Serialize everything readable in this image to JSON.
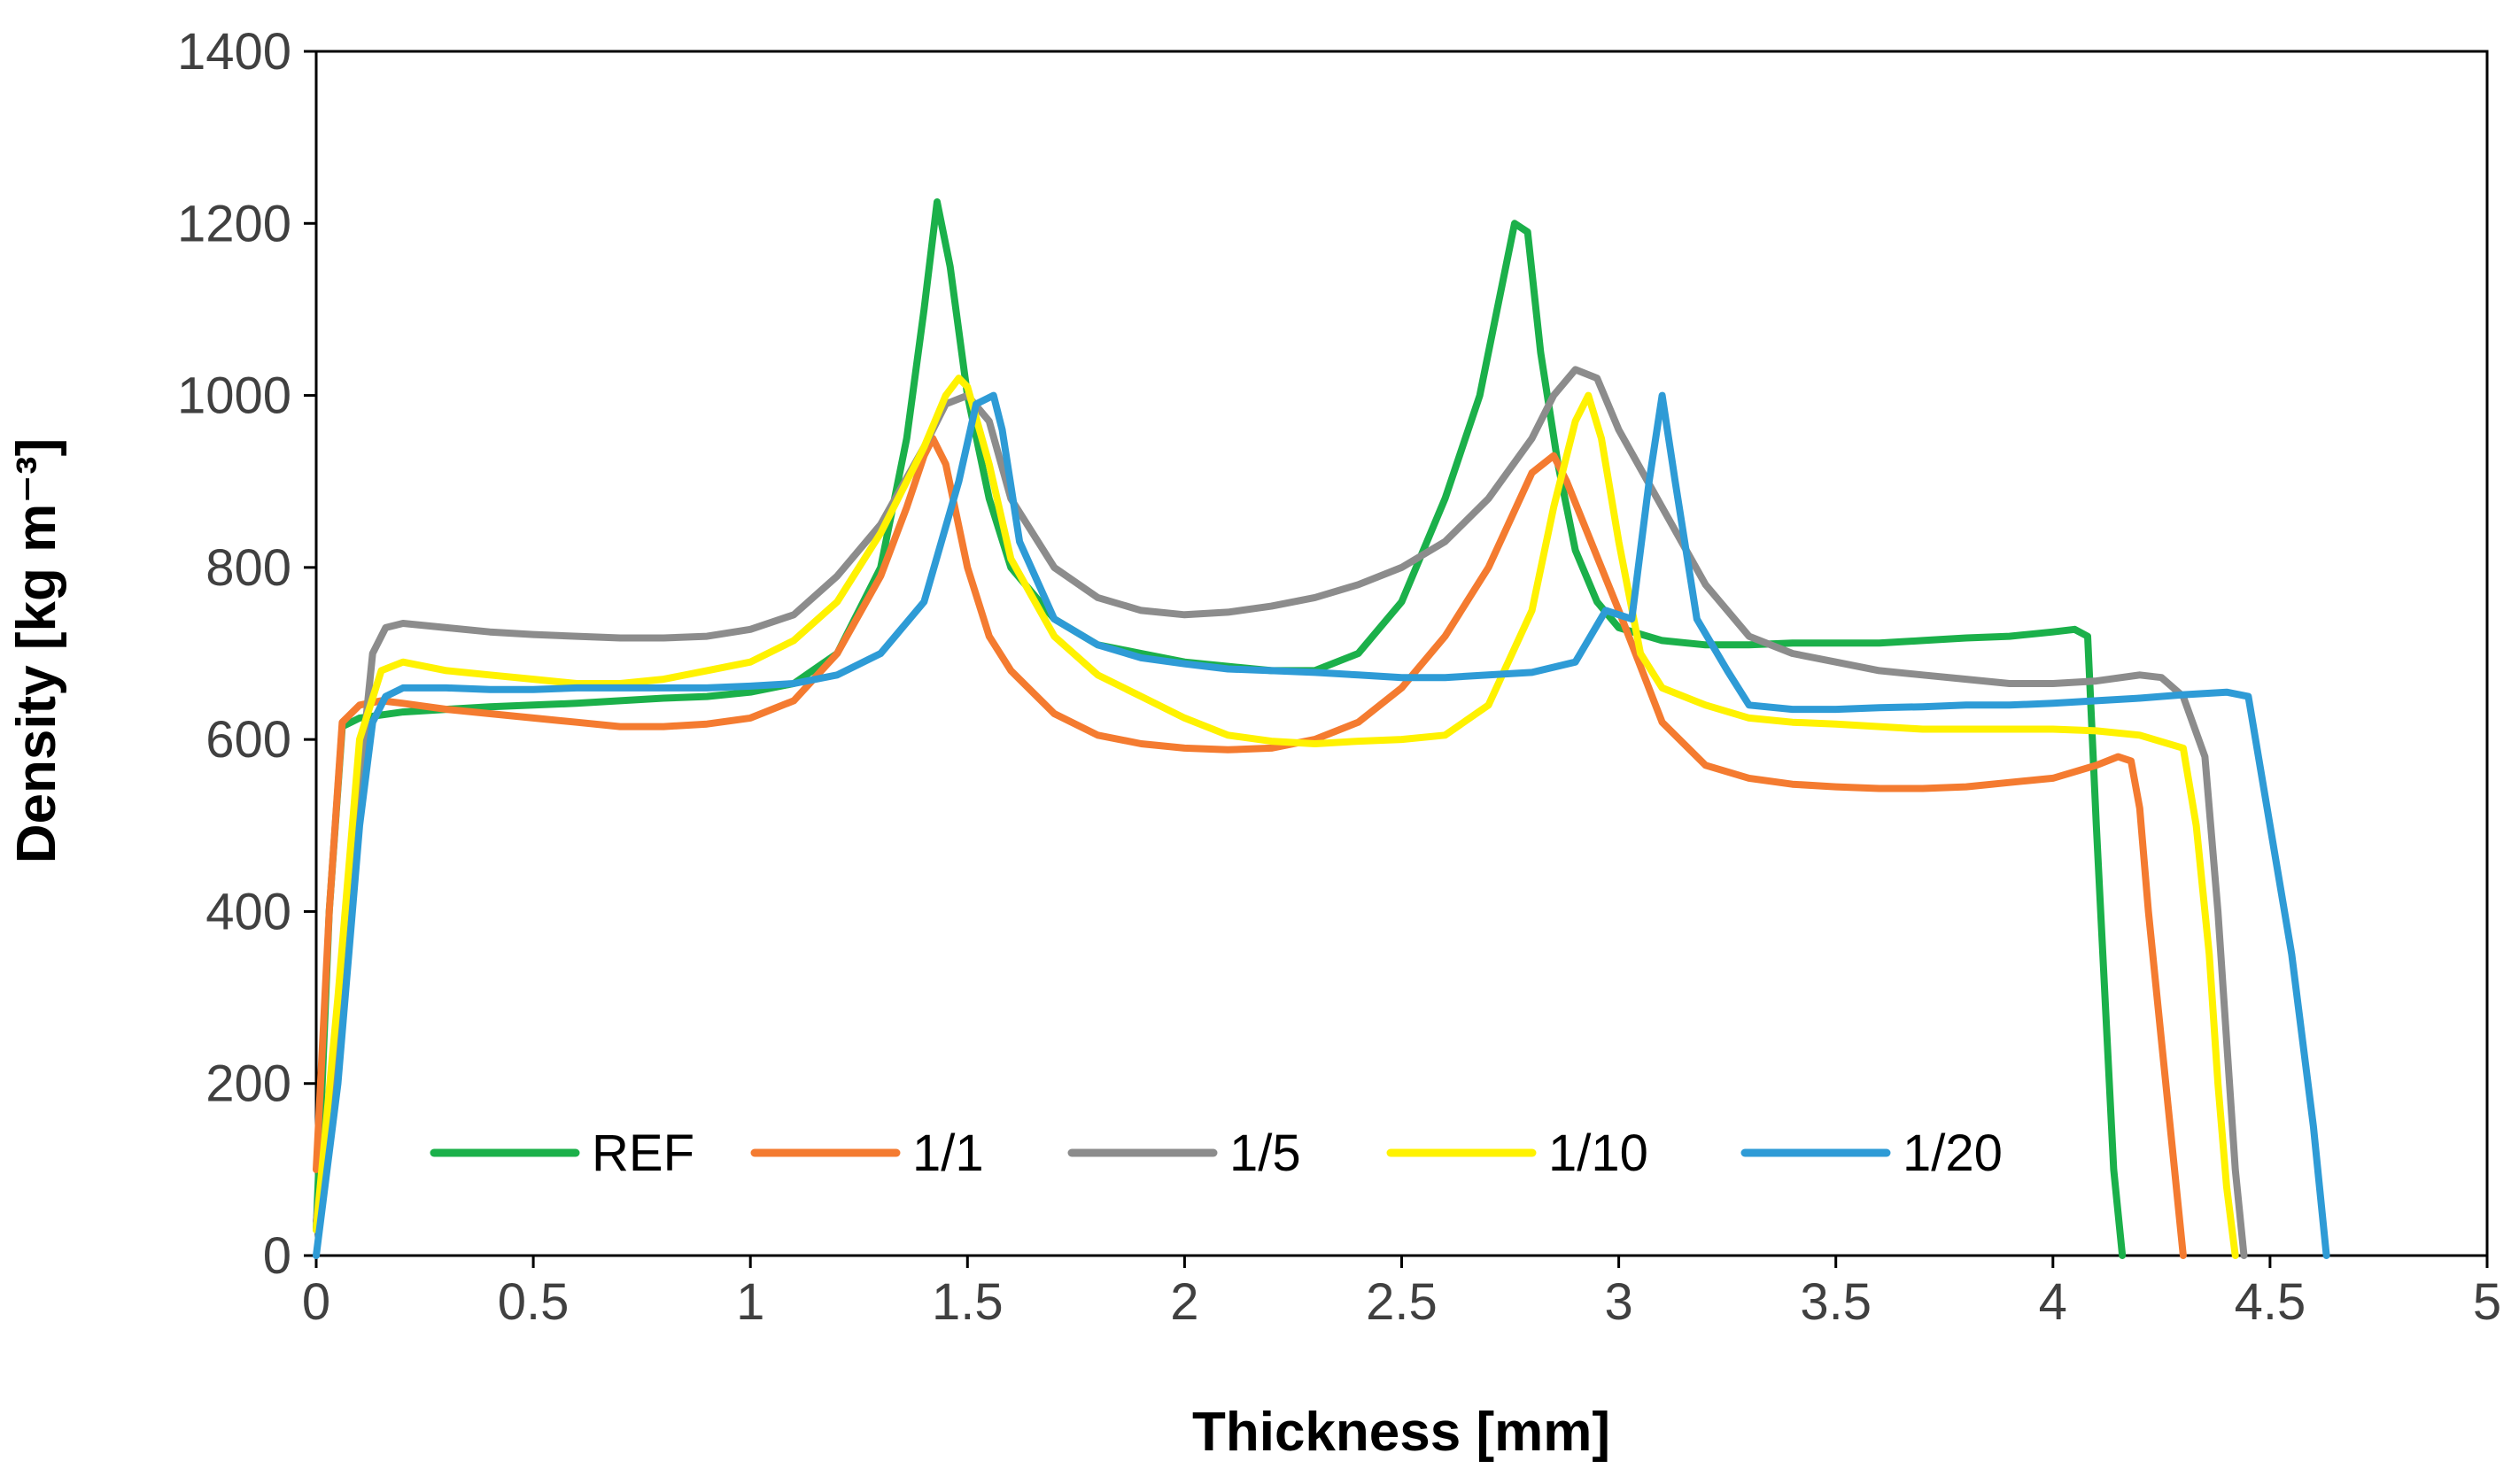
{
  "chart_data": {
    "type": "line",
    "title": "",
    "xlabel": "Thickness [mm]",
    "ylabel": "Density [kg m⁻³]",
    "xlim": [
      0,
      5
    ],
    "ylim": [
      0,
      1400
    ],
    "xticks": [
      0,
      0.5,
      1,
      1.5,
      2,
      2.5,
      3,
      3.5,
      4,
      4.5,
      5
    ],
    "xtick_labels": [
      "0",
      "0.5",
      "1",
      "1.5",
      "2",
      "2.5",
      "3",
      "3.5",
      "4",
      "4.5",
      "5"
    ],
    "yticks": [
      0,
      200,
      400,
      600,
      800,
      1000,
      1200,
      1400
    ],
    "ytick_labels": [
      "0",
      "200",
      "400",
      "600",
      "800",
      "1000",
      "1200",
      "1400"
    ],
    "grid": false,
    "legend_position": "bottom-inside",
    "series": [
      {
        "name": "REF",
        "color": "#1BB04A",
        "x": [
          0,
          0.03,
          0.06,
          0.1,
          0.2,
          0.3,
          0.4,
          0.5,
          0.6,
          0.7,
          0.8,
          0.9,
          1.0,
          1.1,
          1.2,
          1.3,
          1.36,
          1.4,
          1.43,
          1.46,
          1.5,
          1.55,
          1.6,
          1.7,
          1.8,
          1.9,
          2.0,
          2.1,
          2.2,
          2.3,
          2.4,
          2.5,
          2.6,
          2.68,
          2.72,
          2.76,
          2.79,
          2.82,
          2.86,
          2.9,
          2.95,
          3.0,
          3.1,
          3.2,
          3.3,
          3.4,
          3.5,
          3.6,
          3.7,
          3.8,
          3.9,
          4.0,
          4.05,
          4.08,
          4.1,
          4.12,
          4.14,
          4.16
        ],
        "y": [
          30,
          400,
          615,
          625,
          632,
          635,
          638,
          640,
          642,
          645,
          648,
          650,
          655,
          665,
          700,
          800,
          950,
          1100,
          1225,
          1150,
          1000,
          880,
          800,
          740,
          710,
          700,
          690,
          685,
          680,
          680,
          700,
          760,
          880,
          1000,
          1100,
          1200,
          1190,
          1050,
          920,
          820,
          760,
          730,
          715,
          710,
          710,
          712,
          712,
          712,
          715,
          718,
          720,
          725,
          728,
          720,
          500,
          300,
          100,
          0
        ]
      },
      {
        "name": "1/1",
        "color": "#F47B30",
        "x": [
          0,
          0.03,
          0.06,
          0.1,
          0.15,
          0.2,
          0.3,
          0.4,
          0.5,
          0.6,
          0.7,
          0.8,
          0.9,
          1.0,
          1.1,
          1.2,
          1.3,
          1.36,
          1.4,
          1.42,
          1.45,
          1.5,
          1.55,
          1.6,
          1.7,
          1.8,
          1.9,
          2.0,
          2.1,
          2.2,
          2.3,
          2.4,
          2.5,
          2.6,
          2.7,
          2.8,
          2.85,
          2.88,
          2.92,
          3.0,
          3.1,
          3.2,
          3.3,
          3.4,
          3.5,
          3.6,
          3.7,
          3.8,
          3.9,
          4.0,
          4.1,
          4.15,
          4.18,
          4.2,
          4.22,
          4.25,
          4.28,
          4.3
        ],
        "y": [
          100,
          400,
          620,
          640,
          645,
          642,
          635,
          630,
          625,
          620,
          615,
          615,
          618,
          625,
          645,
          700,
          790,
          870,
          930,
          950,
          920,
          800,
          720,
          680,
          630,
          605,
          595,
          590,
          588,
          590,
          600,
          620,
          660,
          720,
          800,
          910,
          930,
          900,
          850,
          750,
          620,
          570,
          555,
          548,
          545,
          543,
          543,
          545,
          550,
          555,
          570,
          580,
          575,
          520,
          400,
          250,
          100,
          0
        ]
      },
      {
        "name": "1/5",
        "color": "#8C8C8C",
        "x": [
          0,
          0.05,
          0.1,
          0.13,
          0.16,
          0.2,
          0.3,
          0.4,
          0.5,
          0.6,
          0.7,
          0.8,
          0.9,
          1.0,
          1.1,
          1.2,
          1.3,
          1.4,
          1.45,
          1.5,
          1.55,
          1.6,
          1.7,
          1.8,
          1.9,
          2.0,
          2.1,
          2.2,
          2.3,
          2.4,
          2.5,
          2.6,
          2.7,
          2.8,
          2.85,
          2.9,
          2.95,
          3.0,
          3.1,
          3.2,
          3.3,
          3.4,
          3.5,
          3.6,
          3.7,
          3.8,
          3.9,
          4.0,
          4.1,
          4.2,
          4.25,
          4.3,
          4.35,
          4.38,
          4.4,
          4.42,
          4.44
        ],
        "y": [
          40,
          250,
          550,
          700,
          730,
          735,
          730,
          725,
          722,
          720,
          718,
          718,
          720,
          728,
          745,
          790,
          850,
          940,
          990,
          1000,
          970,
          880,
          800,
          765,
          750,
          745,
          748,
          755,
          765,
          780,
          800,
          830,
          880,
          950,
          1000,
          1030,
          1020,
          960,
          870,
          780,
          720,
          700,
          690,
          680,
          675,
          670,
          665,
          665,
          668,
          675,
          672,
          650,
          580,
          400,
          250,
          100,
          0
        ]
      },
      {
        "name": "1/10",
        "color": "#FFF200",
        "x": [
          0,
          0.05,
          0.1,
          0.15,
          0.2,
          0.3,
          0.4,
          0.5,
          0.6,
          0.7,
          0.8,
          0.9,
          1.0,
          1.1,
          1.2,
          1.3,
          1.4,
          1.45,
          1.48,
          1.5,
          1.55,
          1.6,
          1.7,
          1.8,
          1.9,
          2.0,
          2.1,
          2.2,
          2.3,
          2.4,
          2.5,
          2.6,
          2.7,
          2.8,
          2.85,
          2.9,
          2.93,
          2.96,
          3.0,
          3.05,
          3.1,
          3.2,
          3.3,
          3.4,
          3.5,
          3.6,
          3.7,
          3.8,
          3.9,
          4.0,
          4.1,
          4.2,
          4.3,
          4.33,
          4.36,
          4.38,
          4.4,
          4.42
        ],
        "y": [
          30,
          300,
          600,
          680,
          690,
          680,
          675,
          670,
          665,
          665,
          670,
          680,
          690,
          715,
          760,
          840,
          940,
          1000,
          1020,
          1010,
          920,
          810,
          720,
          675,
          650,
          625,
          605,
          598,
          595,
          598,
          600,
          605,
          640,
          750,
          870,
          970,
          1000,
          950,
          830,
          700,
          660,
          640,
          625,
          620,
          618,
          615,
          612,
          612,
          612,
          612,
          610,
          605,
          590,
          500,
          350,
          200,
          80,
          0
        ]
      },
      {
        "name": "1/20",
        "color": "#2E9BD6",
        "x": [
          0,
          0.05,
          0.1,
          0.13,
          0.16,
          0.2,
          0.3,
          0.4,
          0.5,
          0.6,
          0.7,
          0.8,
          0.9,
          1.0,
          1.1,
          1.2,
          1.3,
          1.4,
          1.48,
          1.52,
          1.56,
          1.58,
          1.62,
          1.7,
          1.8,
          1.9,
          2.0,
          2.1,
          2.2,
          2.3,
          2.4,
          2.5,
          2.6,
          2.7,
          2.8,
          2.9,
          2.97,
          3.03,
          3.07,
          3.1,
          3.13,
          3.18,
          3.25,
          3.3,
          3.4,
          3.5,
          3.6,
          3.7,
          3.8,
          3.9,
          4.0,
          4.1,
          4.2,
          4.3,
          4.4,
          4.45,
          4.5,
          4.55,
          4.6,
          4.63
        ],
        "y": [
          0,
          200,
          500,
          620,
          650,
          660,
          660,
          658,
          658,
          660,
          660,
          660,
          660,
          662,
          665,
          675,
          700,
          760,
          900,
          990,
          1000,
          960,
          830,
          740,
          710,
          695,
          688,
          682,
          680,
          678,
          675,
          672,
          672,
          675,
          678,
          690,
          750,
          740,
          900,
          1000,
          900,
          740,
          680,
          640,
          635,
          635,
          637,
          638,
          640,
          640,
          642,
          645,
          648,
          652,
          655,
          650,
          500,
          350,
          150,
          0
        ]
      }
    ]
  }
}
